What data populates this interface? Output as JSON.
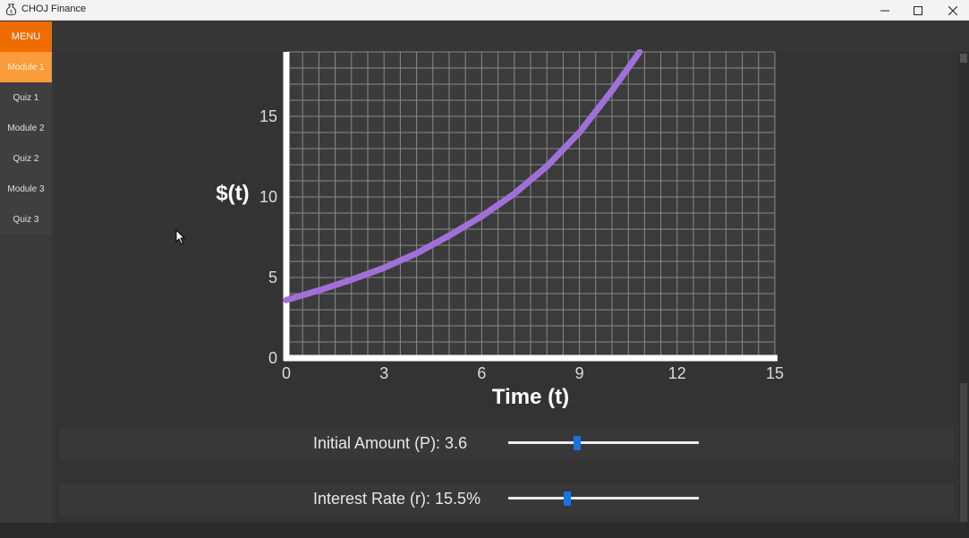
{
  "window": {
    "title": "CHOJ Finance"
  },
  "menu": {
    "label": "MENU"
  },
  "sidebar": {
    "items": [
      {
        "label": "Module 1",
        "active": true
      },
      {
        "label": "Quiz 1"
      },
      {
        "label": "Module 2"
      },
      {
        "label": "Quiz 2"
      },
      {
        "label": "Module 3"
      },
      {
        "label": "Quiz 3"
      }
    ]
  },
  "controls": {
    "principal": {
      "label": "Initial Amount (P): 3.6",
      "value": 3.6,
      "min": 0,
      "max": 10
    },
    "rate": {
      "label": "Interest Rate (r): 15.5%",
      "value": 15.5,
      "min": 0,
      "max": 50
    }
  },
  "colors": {
    "accent": "#ee6c00",
    "accent_light": "#f99c39",
    "curve": "#a070d8",
    "slider_thumb": "#1874d9"
  },
  "chart_data": {
    "type": "line",
    "title": "",
    "xlabel": "Time (t)",
    "ylabel": "$(t)",
    "xlim": [
      0,
      15
    ],
    "ylim": [
      0,
      19
    ],
    "xticks": [
      0,
      3,
      6,
      9,
      12,
      15
    ],
    "yticks": [
      0,
      5,
      10,
      15
    ],
    "grid": true,
    "series": [
      {
        "x": [
          0,
          1,
          2,
          3,
          4,
          5,
          6,
          7,
          8,
          9,
          10,
          10.85
        ],
        "y": [
          3.6,
          4.2,
          4.86,
          5.6,
          6.5,
          7.6,
          8.8,
          10.2,
          11.9,
          14.0,
          16.6,
          19.0
        ]
      }
    ]
  }
}
